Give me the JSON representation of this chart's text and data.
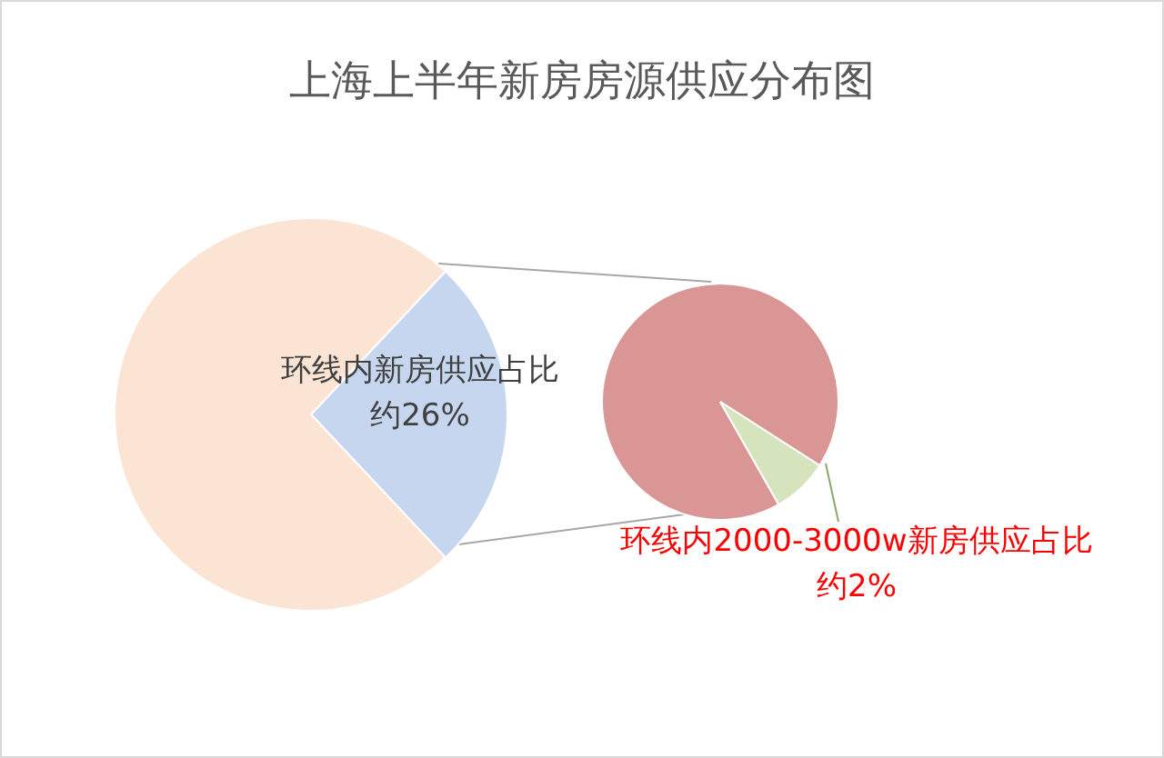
{
  "chart_data": [
    {
      "type": "pie",
      "title": "上海上半年新房房源供应分布图",
      "categories": [
        "环线内新房供应占比",
        null
      ],
      "values": [
        26,
        74
      ],
      "colors": [
        "#c6d6ef",
        "#fce4d5"
      ],
      "value_labels": [
        "约26%",
        null
      ]
    },
    {
      "type": "pie",
      "categories": [
        null,
        "环线内2000-3000w新房供应占比"
      ],
      "values": [
        24,
        2
      ],
      "colors": [
        "#d99694",
        "#d6e4bd"
      ],
      "value_labels": [
        null,
        "约2%"
      ]
    }
  ]
}
